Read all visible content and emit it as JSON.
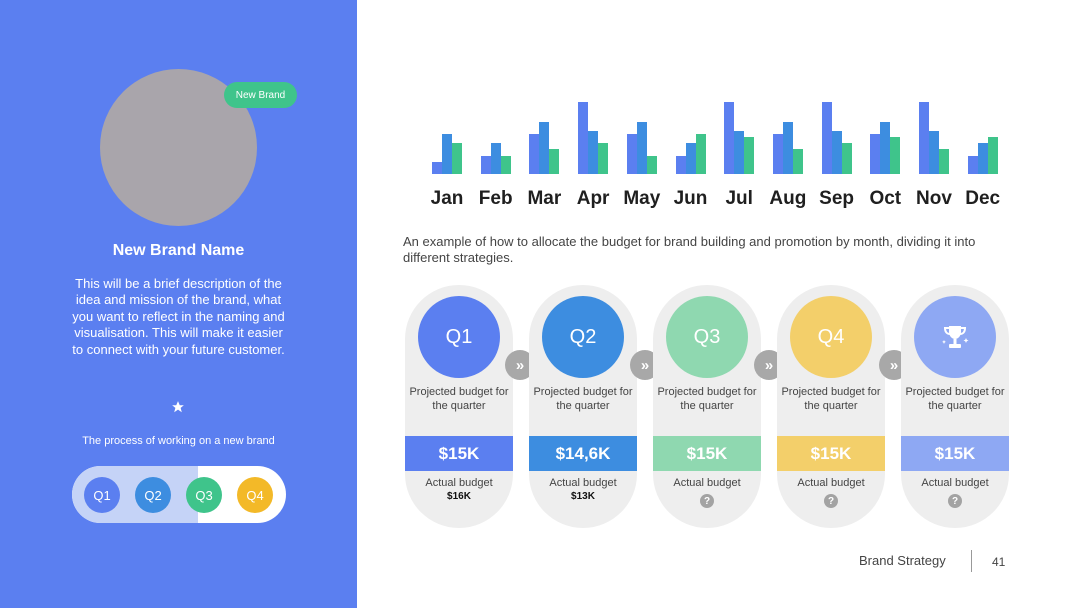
{
  "colors": {
    "left_panel": "#5b7ff0",
    "badge": "#3fc48b",
    "q1": "#5b7ff0",
    "q2": "#3d8de0",
    "q3": "#8fd8b0",
    "q4": "#f3cf6a",
    "summary": "#8ea8f3",
    "series1": "#5b7ff0",
    "series2": "#3d8de0",
    "series3": "#3fc48b"
  },
  "left": {
    "badge": "New Brand",
    "brand_name": "New Brand Name",
    "description": "This will be a brief description of the idea and mission of the brand, what you want to reflect in the naming and visualisation. This will make it easier to connect with your future customer.",
    "process_label": "The process of working on a new brand",
    "quarters": [
      "Q1",
      "Q2",
      "Q3",
      "Q4"
    ]
  },
  "chart_data": {
    "type": "bar",
    "categories": [
      "Jan",
      "Feb",
      "Mar",
      "Apr",
      "May",
      "Jun",
      "Jul",
      "Aug",
      "Sep",
      "Oct",
      "Nov",
      "Dec"
    ],
    "series": [
      {
        "values": [
          12,
          18,
          40,
          72,
          40,
          18,
          72,
          40,
          72,
          40,
          72,
          18
        ]
      },
      {
        "values": [
          40,
          31,
          52,
          43,
          52,
          31,
          43,
          52,
          43,
          52,
          43,
          31
        ]
      },
      {
        "values": [
          31,
          18,
          25,
          31,
          18,
          40,
          37,
          25,
          31,
          37,
          25,
          37
        ]
      }
    ],
    "ylim": [
      0,
      72
    ]
  },
  "intro": "An example of how to allocate the budget for brand building and promotion by month, dividing it into different strategies.",
  "cards": [
    {
      "label": "Q1",
      "projected": "Projected budget for the quarter",
      "value": "$15K",
      "actual_label": "Actual budget",
      "actual_value": "$16K"
    },
    {
      "label": "Q2",
      "projected": "Projected budget for the quarter",
      "value": "$14,6K",
      "actual_label": "Actual budget",
      "actual_value": "$13K"
    },
    {
      "label": "Q3",
      "projected": "Projected budget for the quarter",
      "value": "$15K",
      "actual_label": "Actual budget",
      "actual_value": "?"
    },
    {
      "label": "Q4",
      "projected": "Projected budget for the quarter",
      "value": "$15K",
      "actual_label": "Actual budget",
      "actual_value": "?"
    },
    {
      "label": "",
      "icon": "trophy-icon",
      "projected": "Projected budget for the quarter",
      "value": "$15K",
      "actual_label": "Actual budget",
      "actual_value": "?"
    }
  ],
  "footer": {
    "title": "Brand Strategy",
    "page": "41"
  }
}
